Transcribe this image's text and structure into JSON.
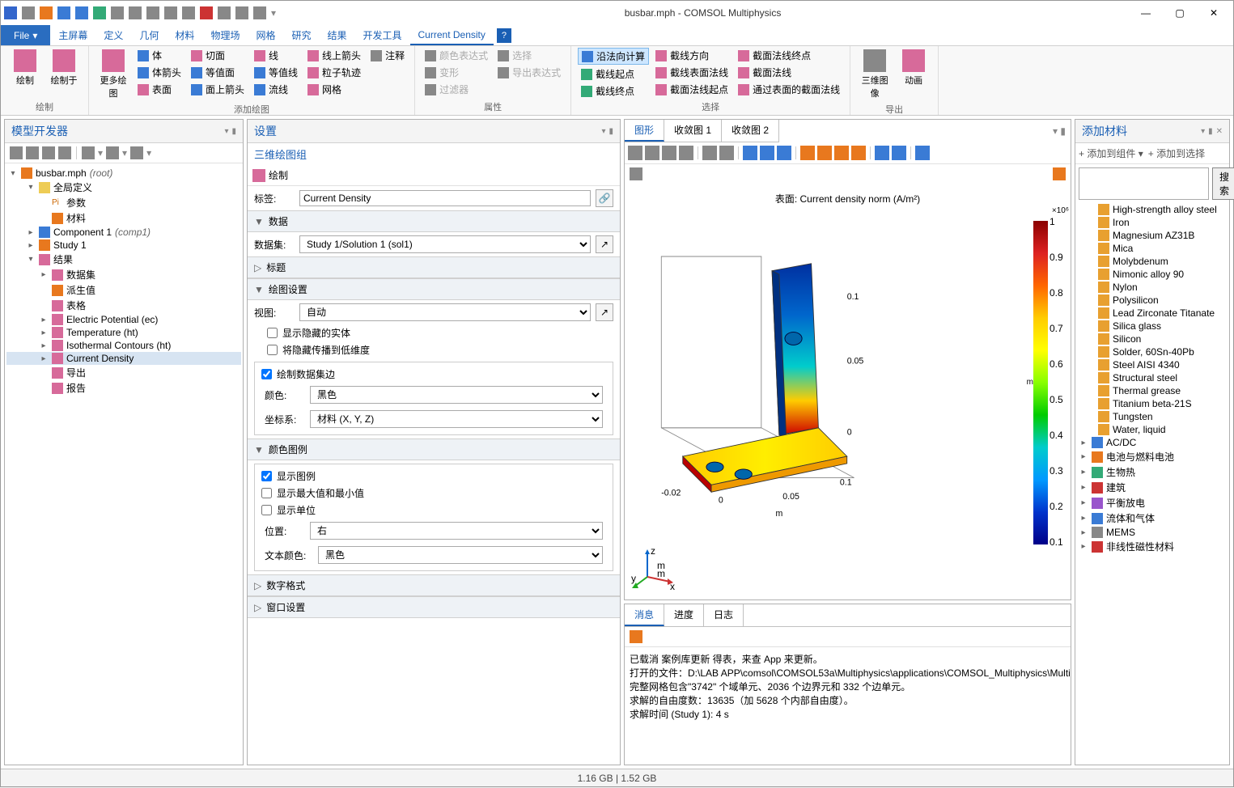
{
  "window": {
    "title": "busbar.mph - COMSOL Multiphysics"
  },
  "menubar": {
    "file": "File",
    "tabs": [
      "主屏幕",
      "定义",
      "几何",
      "材料",
      "物理场",
      "网格",
      "研究",
      "结果",
      "开发工具",
      "Current Density"
    ],
    "active": 9
  },
  "ribbon": {
    "groups": [
      {
        "label": "绘制",
        "big": [
          [
            "绘制",
            "ic-pink"
          ],
          [
            "绘制于",
            "ic-pink"
          ]
        ]
      },
      {
        "label": "添加绘图",
        "cols": [
          [
            [
              "体",
              "ic-blue"
            ],
            [
              "体箭头",
              "ic-blue"
            ],
            [
              "表面",
              "ic-pink"
            ]
          ],
          [
            [
              "切面",
              "ic-pink"
            ],
            [
              "等值面",
              "ic-blue"
            ],
            [
              "面上箭头",
              "ic-blue"
            ]
          ],
          [
            [
              "线",
              "ic-pink"
            ],
            [
              "等值线",
              "ic-blue"
            ],
            [
              "流线",
              "ic-blue"
            ]
          ],
          [
            [
              "线上箭头",
              "ic-pink"
            ],
            [
              "粒子轨迹",
              "ic-pink"
            ],
            [
              "网格",
              "ic-pink"
            ]
          ],
          [
            [
              "注释",
              "ic-gray"
            ]
          ]
        ],
        "big": [
          [
            "更多绘图",
            "ic-pink"
          ]
        ]
      },
      {
        "label": "属性",
        "cols": [
          [
            [
              "颜色表达式",
              "ic-gray",
              true
            ],
            [
              "变形",
              "ic-gray",
              true
            ],
            [
              "过滤器",
              "ic-gray",
              true
            ]
          ],
          [
            [
              "选择",
              "ic-gray",
              true
            ],
            [
              "导出表达式",
              "ic-gray",
              true
            ]
          ]
        ]
      },
      {
        "label": "选择",
        "cols": [
          [
            [
              "沿法向计算",
              "ic-blue",
              false,
              true
            ],
            [
              "截线起点",
              "ic-green"
            ],
            [
              "截线终点",
              "ic-green"
            ]
          ],
          [
            [
              "截线方向",
              "ic-pink"
            ],
            [
              "截线表面法线",
              "ic-pink"
            ],
            [
              "截面法线起点",
              "ic-pink"
            ]
          ],
          [
            [
              "截面法线终点",
              "ic-pink"
            ],
            [
              "截面法线",
              "ic-pink"
            ],
            [
              "通过表面的截面法线",
              "ic-pink"
            ]
          ]
        ]
      },
      {
        "label": "导出",
        "big": [
          [
            "三维图像",
            "ic-gray"
          ],
          [
            "动画",
            "ic-pink"
          ]
        ]
      }
    ]
  },
  "tree": {
    "title": "模型开发器",
    "root": "busbar.mph",
    "root_suffix": "(root)",
    "nodes": [
      {
        "d": 1,
        "exp": "▾",
        "ic": "ic-yellow",
        "t": "全局定义"
      },
      {
        "d": 2,
        "exp": "",
        "ic": "ic-orange",
        "t": "参数",
        "pre": "Pi"
      },
      {
        "d": 2,
        "exp": "",
        "ic": "ic-orange",
        "t": "材料"
      },
      {
        "d": 1,
        "exp": "▸",
        "ic": "ic-blue",
        "t": "Component 1",
        "suf": "(comp1)"
      },
      {
        "d": 1,
        "exp": "▸",
        "ic": "ic-orange",
        "t": "Study 1"
      },
      {
        "d": 1,
        "exp": "▾",
        "ic": "ic-pink",
        "t": "结果"
      },
      {
        "d": 2,
        "exp": "▸",
        "ic": "ic-pink",
        "t": "数据集"
      },
      {
        "d": 2,
        "exp": "",
        "ic": "ic-orange",
        "t": "派生值"
      },
      {
        "d": 2,
        "exp": "",
        "ic": "ic-pink",
        "t": "表格"
      },
      {
        "d": 2,
        "exp": "▸",
        "ic": "ic-pink",
        "t": "Electric Potential (ec)"
      },
      {
        "d": 2,
        "exp": "▸",
        "ic": "ic-pink",
        "t": "Temperature (ht)"
      },
      {
        "d": 2,
        "exp": "▸",
        "ic": "ic-pink",
        "t": "Isothermal Contours (ht)"
      },
      {
        "d": 2,
        "exp": "▸",
        "ic": "ic-pink",
        "t": "Current Density",
        "sel": true
      },
      {
        "d": 2,
        "exp": "",
        "ic": "ic-pink",
        "t": "导出"
      },
      {
        "d": 2,
        "exp": "",
        "ic": "ic-pink",
        "t": "报告"
      }
    ]
  },
  "settings": {
    "title": "设置",
    "subtitle": "三维绘图组",
    "plot_btn": "绘制",
    "label_lbl": "标签:",
    "label_val": "Current Density",
    "sect_data": "数据",
    "dataset_lbl": "数据集:",
    "dataset_val": "Study 1/Solution 1 (sol1)",
    "sect_title": "标题",
    "sect_plot": "绘图设置",
    "view_lbl": "视图:",
    "view_val": "自动",
    "cb1": "显示隐藏的实体",
    "cb2": "将隐藏传播到低维度",
    "cb3": "绘制数据集边",
    "color_lbl": "颜色:",
    "color_val": "黑色",
    "coord_lbl": "坐标系:",
    "coord_val": "材料  (X, Y, Z)",
    "sect_legend": "颜色图例",
    "lg1": "显示图例",
    "lg2": "显示最大值和最小值",
    "lg3": "显示单位",
    "pos_lbl": "位置:",
    "pos_val": "右",
    "tcol_lbl": "文本颜色:",
    "tcol_val": "黑色",
    "sect_num": "数字格式",
    "sect_win": "窗口设置"
  },
  "graphics": {
    "tabs": [
      "图形",
      "收敛图 1",
      "收敛图 2"
    ],
    "active": 0,
    "plot_title": "表面: Current density norm (A/m²)",
    "cb_exp": "×10⁶",
    "cb_ticks": [
      "1",
      "0.9",
      "0.8",
      "0.7",
      "0.6",
      "0.5",
      "0.4",
      "0.3",
      "0.2",
      "0.1"
    ],
    "cb_unit_top": "m",
    "x_ticks": [
      "-0.02",
      "0",
      "0.05",
      "0.1"
    ],
    "x_label": "m",
    "z_ticks": [
      "0",
      "0.05",
      "0.1"
    ]
  },
  "materials": {
    "title": "添加材料",
    "add_comp": "添加到组件",
    "add_sel": "添加到选择",
    "search_btn": "搜索",
    "items": [
      "High-strength alloy steel",
      "Iron",
      "Magnesium AZ31B",
      "Mica",
      "Molybdenum",
      "Nimonic alloy 90",
      "Nylon",
      "Polysilicon",
      "Lead Zirconate Titanate",
      "Silica glass",
      "Silicon",
      "Solder, 60Sn-40Pb",
      "Steel AISI 4340",
      "Structural steel",
      "Thermal grease",
      "Titanium beta-21S",
      "Tungsten",
      "Water, liquid"
    ],
    "cats": [
      [
        "AC/DC",
        "ic-blue"
      ],
      [
        "电池与燃料电池",
        "ic-orange"
      ],
      [
        "生物热",
        "ic-green"
      ],
      [
        "建筑",
        "ic-red"
      ],
      [
        "平衡放电",
        "ic-purple"
      ],
      [
        "流体和气体",
        "ic-blue"
      ],
      [
        "MEMS",
        "ic-gray"
      ],
      [
        "非线性磁性材料",
        "ic-red"
      ]
    ]
  },
  "log": {
    "tabs": [
      "消息",
      "进度",
      "日志"
    ],
    "active": 0,
    "lines": [
      "已载消 案例库更新 得表，来查 App 来更新。",
      "打开的文件：D:\\LAB APP\\comsol\\COMSOL53a\\Multiphysics\\applications\\COMSOL_Multiphysics\\Multiphysics",
      "完整网格包含\"3742\" 个域单元、2036 个边界元和 332 个边单元。",
      "求解的自由度数：13635（加 5628 个内部自由度）。",
      "求解时间 (Study 1): 4 s"
    ]
  },
  "status": {
    "mem": "1.16 GB | 1.52 GB"
  }
}
